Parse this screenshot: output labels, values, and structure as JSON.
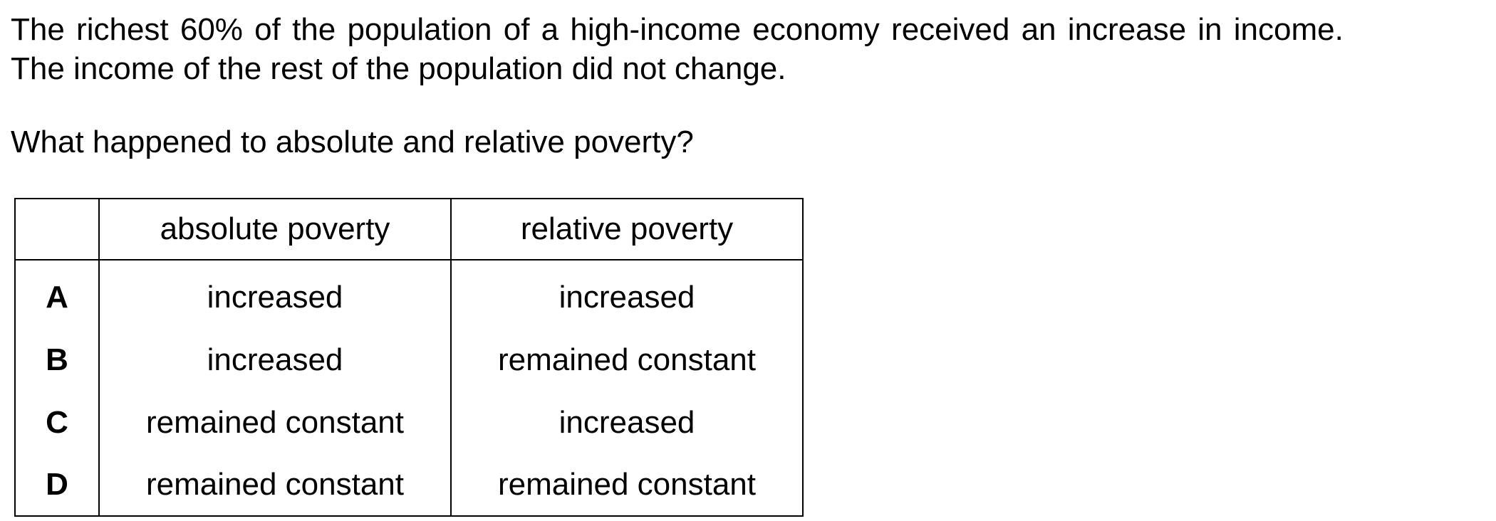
{
  "stem": {
    "line1": "The richest 60% of the population of a high-income economy received an increase in income.",
    "line2": "The income of the rest of the population did not change."
  },
  "question": "What happened to absolute and relative poverty?",
  "table": {
    "headers": [
      "",
      "absolute poverty",
      "relative poverty"
    ],
    "rows": [
      {
        "letter": "A",
        "absolute": "increased",
        "relative": "increased"
      },
      {
        "letter": "B",
        "absolute": "increased",
        "relative": "remained constant"
      },
      {
        "letter": "C",
        "absolute": "remained constant",
        "relative": "increased"
      },
      {
        "letter": "D",
        "absolute": "remained constant",
        "relative": "remained constant"
      }
    ]
  }
}
